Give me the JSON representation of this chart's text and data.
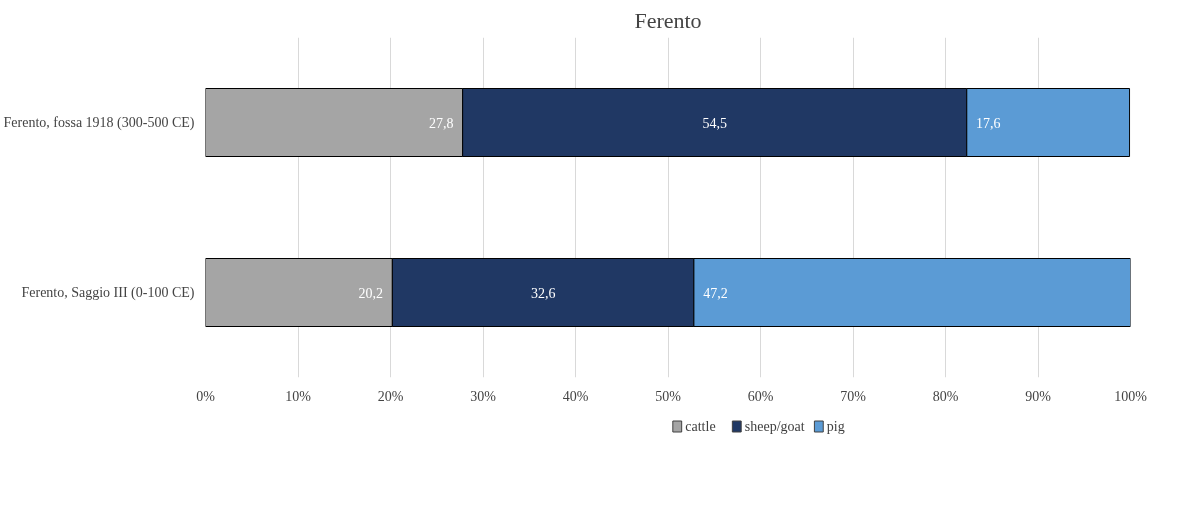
{
  "chart_data": {
    "type": "bar",
    "title": "Ferento",
    "orientation": "horizontal",
    "stacked": true,
    "categories": [
      "Ferento, fossa 1918 (300-500 CE)",
      "Ferento, Saggio III (0-100 CE)"
    ],
    "series": [
      {
        "name": "cattle",
        "color": "#a5a5a5",
        "values": [
          27.8,
          20.2
        ],
        "value_labels": [
          "27,8",
          "20,2"
        ]
      },
      {
        "name": "sheep/goat",
        "color": "#203864",
        "values": [
          54.5,
          32.6
        ],
        "value_labels": [
          "54,5",
          "32,6"
        ]
      },
      {
        "name": "pig",
        "color": "#5b9bd5",
        "values": [
          17.6,
          47.2
        ],
        "value_labels": [
          "17,6",
          "47,2"
        ]
      }
    ],
    "xlim": [
      0,
      100
    ],
    "xticks": [
      {
        "value": 0,
        "label": "0%"
      },
      {
        "value": 10,
        "label": "10%"
      },
      {
        "value": 20,
        "label": "20%"
      },
      {
        "value": 30,
        "label": "30%"
      },
      {
        "value": 40,
        "label": "40%"
      },
      {
        "value": 50,
        "label": "50%"
      },
      {
        "value": 60,
        "label": "60%"
      },
      {
        "value": 70,
        "label": "70%"
      },
      {
        "value": 80,
        "label": "80%"
      },
      {
        "value": 90,
        "label": "90%"
      },
      {
        "value": 100,
        "label": "100%"
      }
    ],
    "grid": "x",
    "legend": "bottom"
  }
}
